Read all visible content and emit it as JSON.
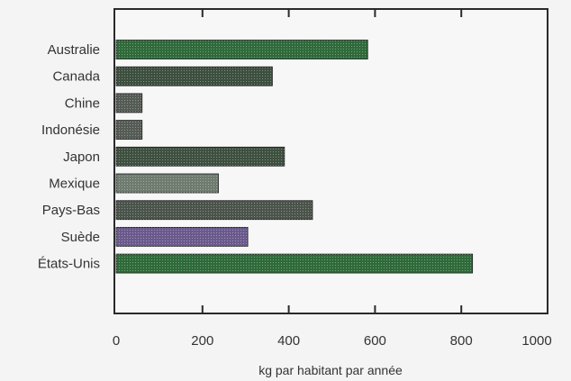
{
  "chart_data": {
    "type": "bar",
    "orientation": "horizontal",
    "categories": [
      "Australie",
      "Canada",
      "Chine",
      "Indonésie",
      "Japon",
      "Mexique",
      "Pays-Bas",
      "Suède",
      "États-Unis"
    ],
    "values": [
      583,
      362,
      60,
      60,
      390,
      237,
      455,
      305,
      826
    ],
    "xlabel": "kg par habitant par année",
    "xlim": [
      0,
      1000
    ],
    "xticks": [
      0,
      200,
      400,
      600,
      800,
      1000
    ],
    "grid": false,
    "bar_colors": [
      "#2f6a3a",
      "#3d4f3e",
      "#555b55",
      "#555b55",
      "#3e5040",
      "#6e7b6e",
      "#4b544b",
      "#6a5a8c",
      "#2f6a3a"
    ]
  }
}
